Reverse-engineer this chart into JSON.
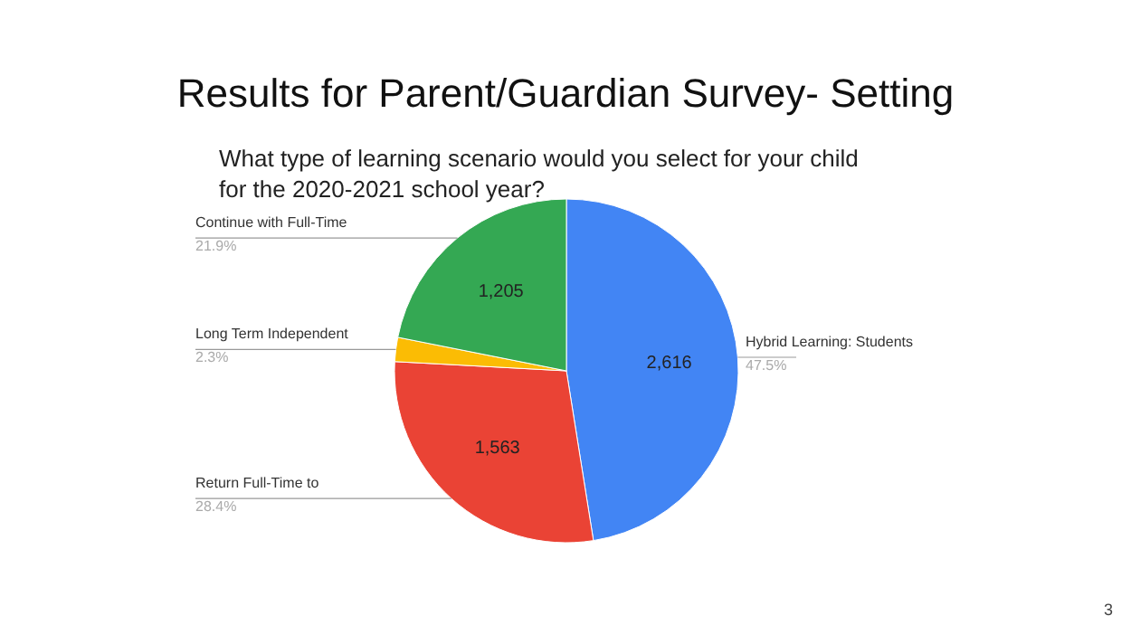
{
  "chart_data": {
    "type": "pie",
    "title": "Results for Parent/Guardian Survey- Setting",
    "subtitle": "What type of learning scenario would you select for your child\nfor the 2020-2021 school year?",
    "categories": [
      "Hybrid Learning: Students",
      "Return Full-Time to",
      "Long Term Independent",
      "Continue with Full-Time"
    ],
    "values": [
      2616,
      1563,
      125,
      1205
    ],
    "colors": [
      "#4285f4",
      "#ea4335",
      "#fbbc04",
      "#34a853"
    ],
    "value_labels": [
      "2,616",
      "1,563",
      null,
      "1,205"
    ],
    "annotations": [
      "47.5%",
      "28.4%",
      "2.3%",
      "21.9%",
      "3"
    ]
  }
}
